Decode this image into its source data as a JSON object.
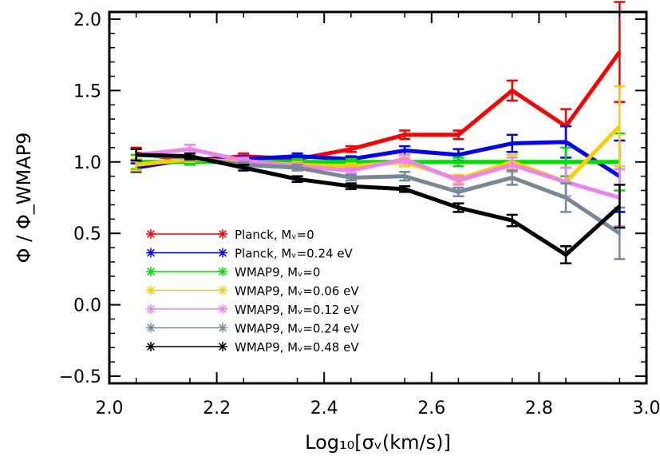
{
  "chart_data": {
    "type": "line",
    "xlabel": "Log₁₀[σᵥ(km/s)]",
    "ylabel": "Φ / Φ_WMAP9",
    "xlim": [
      2.0,
      3.0
    ],
    "ylim": [
      -0.55,
      2.05
    ],
    "xticks": [
      "2.0",
      "2.2",
      "2.4",
      "2.6",
      "2.8",
      "3.0"
    ],
    "yticks": [
      "−0.5",
      "0.0",
      "0.5",
      "1.0",
      "1.5",
      "2.0"
    ],
    "grid": false,
    "legend_position": "bottom-left",
    "x": [
      2.05,
      2.15,
      2.25,
      2.35,
      2.45,
      2.55,
      2.65,
      2.75,
      2.85,
      2.95
    ],
    "series": [
      {
        "name": "Planck, Mᵥ=0",
        "color": "#ff0000",
        "values": [
          1.06,
          1.01,
          1.04,
          1.02,
          1.09,
          1.19,
          1.19,
          1.5,
          1.25,
          1.77
        ],
        "errors": [
          0.04,
          0.02,
          0.02,
          0.02,
          0.02,
          0.03,
          0.03,
          0.07,
          0.12,
          0.35
        ]
      },
      {
        "name": "Planck, Mᵥ=0.24 eV",
        "color": "#0000ff",
        "values": [
          0.96,
          1.02,
          1.02,
          1.04,
          1.02,
          1.08,
          1.05,
          1.13,
          1.14,
          0.9
        ],
        "errors": [
          0.03,
          0.02,
          0.02,
          0.02,
          0.02,
          0.03,
          0.04,
          0.06,
          0.11,
          0.25
        ]
      },
      {
        "name": "WMAP9, Mᵥ=0",
        "color": "#00dd00",
        "values": [
          1.0,
          1.0,
          1.0,
          1.0,
          1.0,
          1.0,
          1.0,
          1.0,
          1.0,
          1.0
        ],
        "errors": [
          0.05,
          0.02,
          0.02,
          0.02,
          0.02,
          0.03,
          0.03,
          0.05,
          0.1,
          0.2
        ]
      },
      {
        "name": "WMAP9, Mᵥ=0.06 eV",
        "color": "#ffcc00",
        "values": [
          0.98,
          1.02,
          1.0,
          0.98,
          0.97,
          1.0,
          0.88,
          1.0,
          0.86,
          1.25
        ],
        "errors": [
          0.04,
          0.02,
          0.02,
          0.02,
          0.02,
          0.03,
          0.03,
          0.05,
          0.1,
          0.28
        ]
      },
      {
        "name": "WMAP9, Mᵥ=0.12 eV",
        "color": "#ee82ee",
        "values": [
          1.05,
          1.09,
          1.01,
          0.97,
          0.94,
          1.02,
          0.87,
          0.98,
          0.86,
          0.75
        ],
        "errors": [
          0.04,
          0.03,
          0.02,
          0.02,
          0.02,
          0.03,
          0.03,
          0.05,
          0.1,
          0.2
        ]
      },
      {
        "name": "WMAP9, Mᵥ=0.24 eV",
        "color": "#778899",
        "values": [
          1.05,
          1.03,
          0.98,
          0.96,
          0.89,
          0.9,
          0.79,
          0.89,
          0.75,
          0.5
        ],
        "errors": [
          0.04,
          0.02,
          0.02,
          0.02,
          0.02,
          0.03,
          0.03,
          0.05,
          0.1,
          0.18
        ]
      },
      {
        "name": "WMAP9, Mᵥ=0.48 eV",
        "color": "#000000",
        "values": [
          1.05,
          1.04,
          0.96,
          0.88,
          0.83,
          0.81,
          0.68,
          0.59,
          0.35,
          0.69
        ],
        "errors": [
          0.04,
          0.02,
          0.02,
          0.02,
          0.02,
          0.02,
          0.03,
          0.04,
          0.06,
          0.15
        ]
      }
    ]
  }
}
